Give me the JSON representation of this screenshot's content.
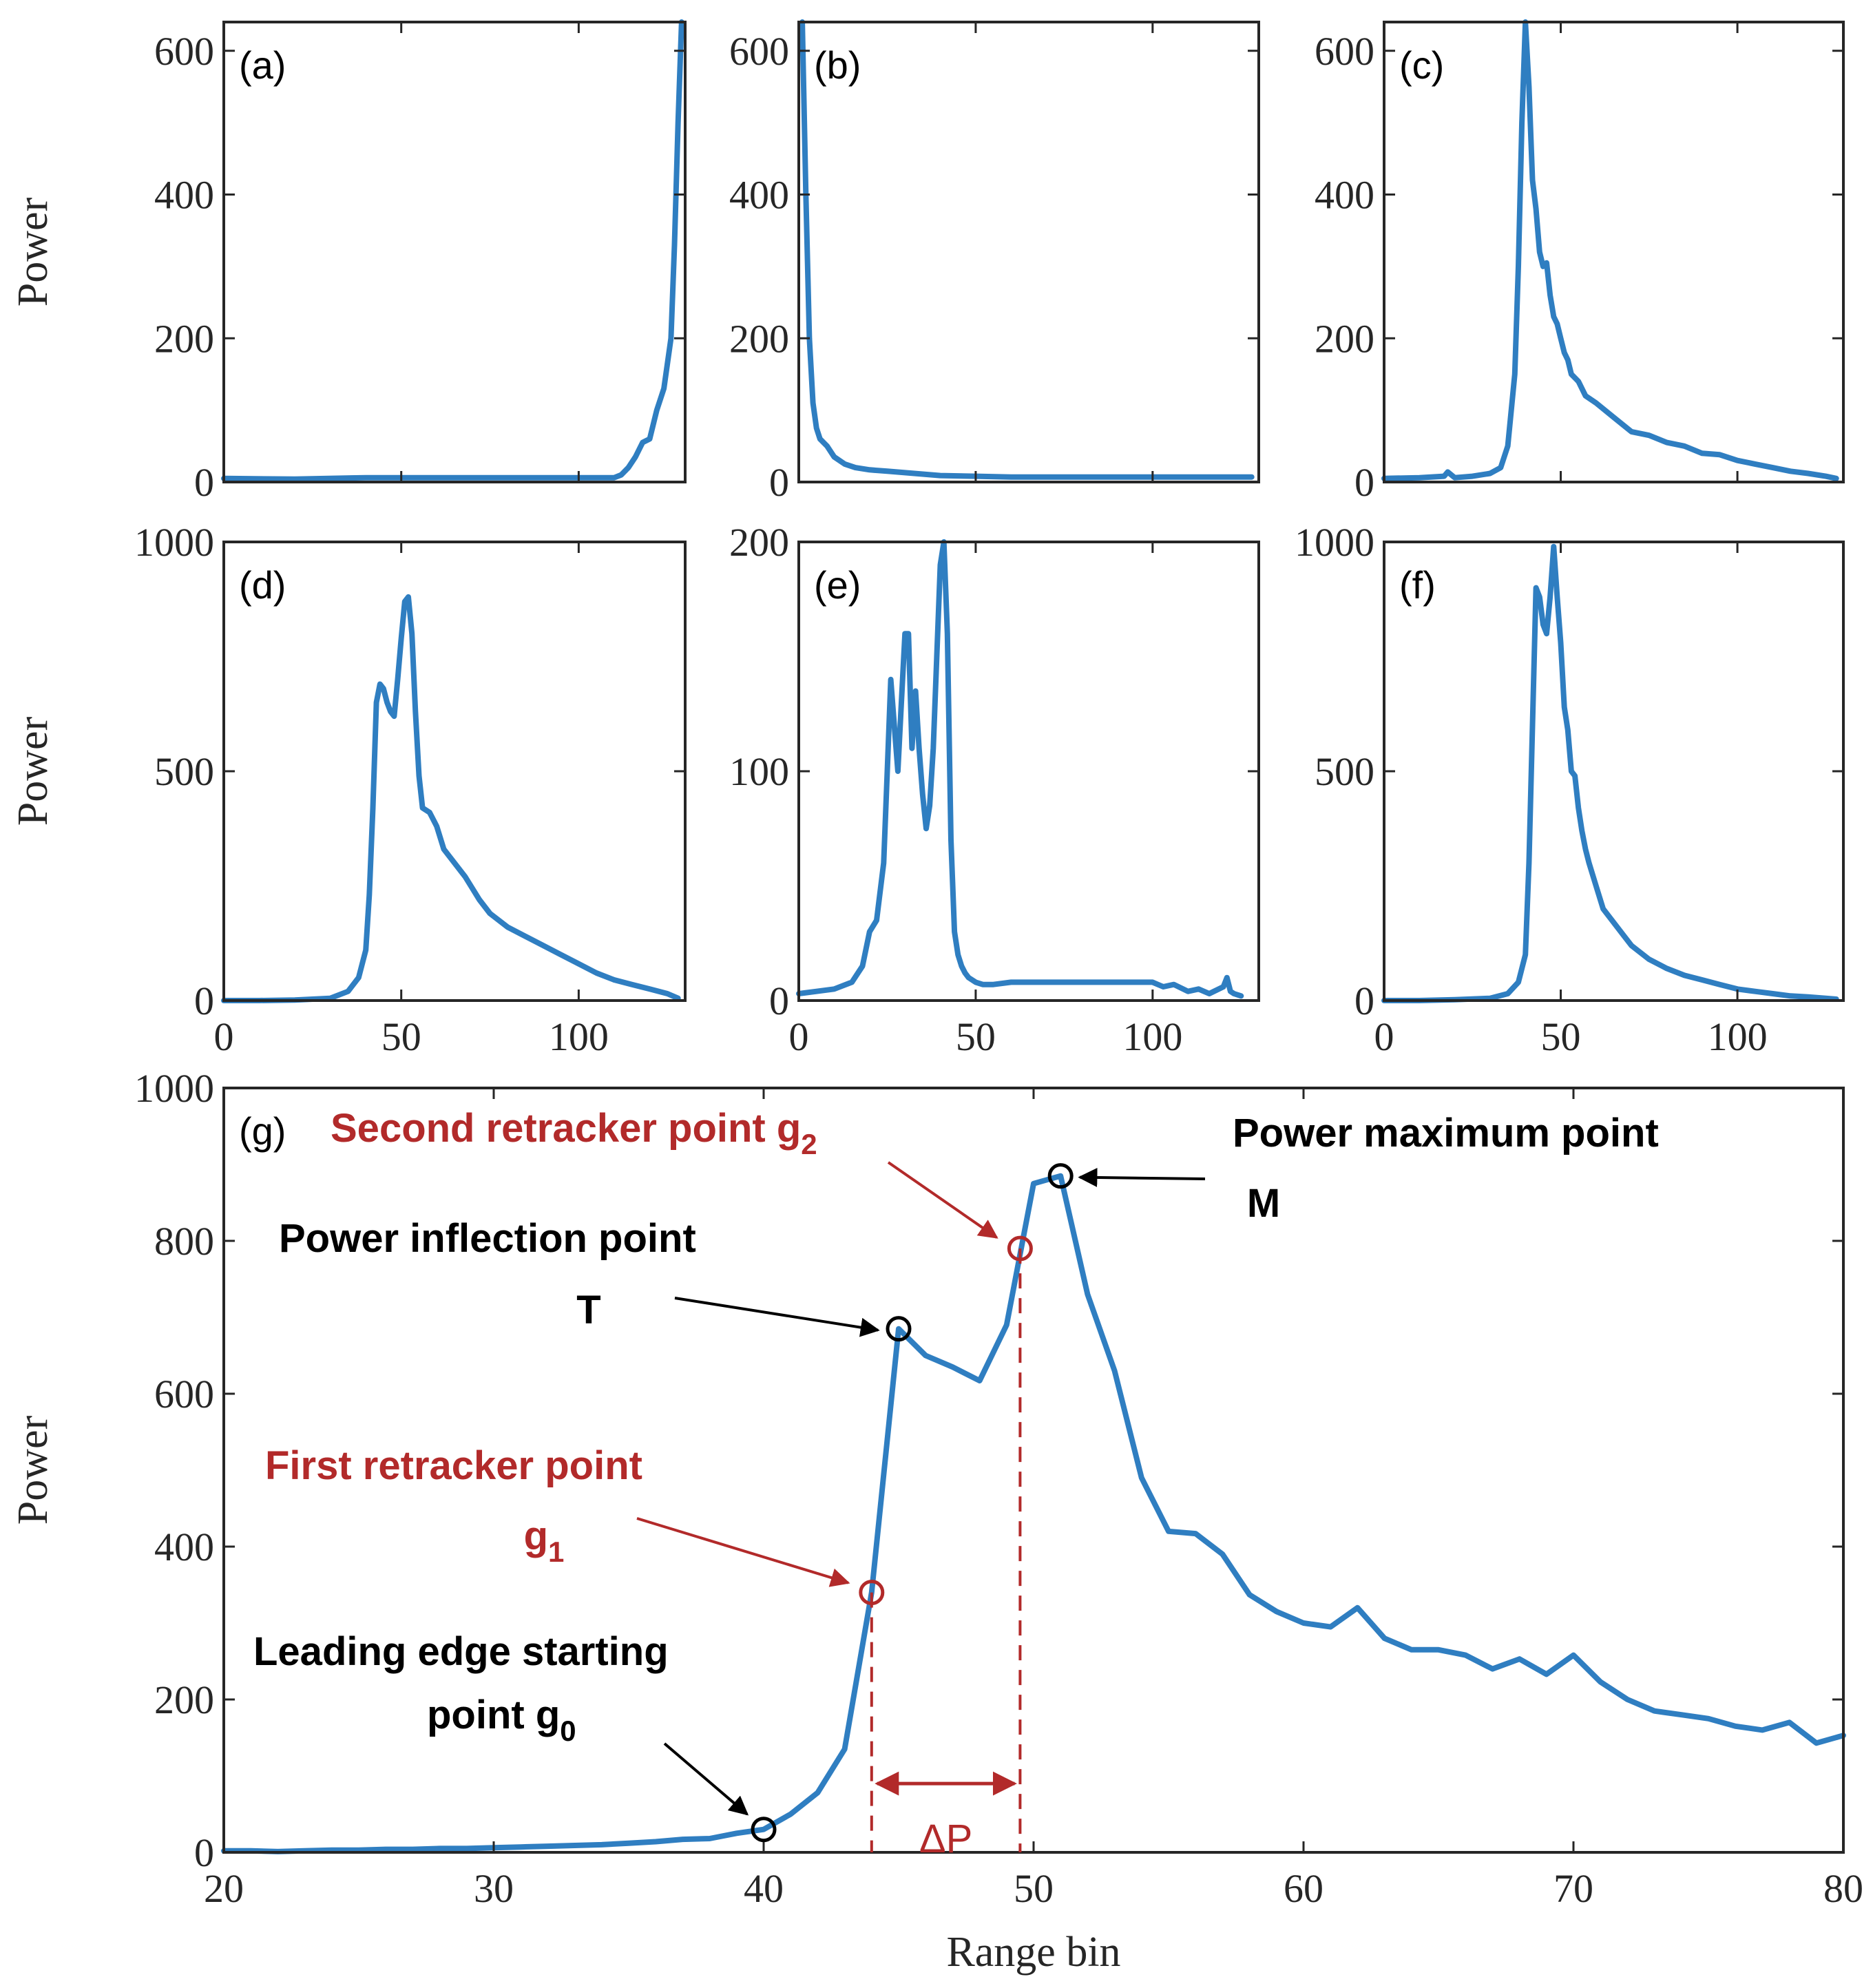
{
  "chart_data": [
    {
      "type": "line",
      "panel_label": "(a)",
      "ylabel": "Power",
      "xlabel": "",
      "xlim": [
        0,
        130
      ],
      "ylim": [
        0,
        640
      ],
      "xticks": [],
      "yticks": [
        0,
        200,
        400,
        600
      ],
      "series": [
        {
          "name": "waveform",
          "x": [
            0,
            20,
            40,
            60,
            80,
            100,
            110,
            112,
            114,
            116,
            118,
            120,
            122,
            124,
            126,
            127,
            128,
            129
          ],
          "y": [
            5,
            4,
            6,
            6,
            6,
            6,
            6,
            10,
            20,
            35,
            55,
            60,
            100,
            130,
            200,
            330,
            500,
            640
          ]
        }
      ]
    },
    {
      "type": "line",
      "panel_label": "(b)",
      "ylabel": "",
      "xlabel": "",
      "xlim": [
        0,
        130
      ],
      "ylim": [
        0,
        640
      ],
      "xticks": [],
      "yticks": [
        0,
        200,
        400,
        600
      ],
      "series": [
        {
          "name": "waveform",
          "x": [
            1,
            2,
            3,
            4,
            5,
            6,
            8,
            10,
            13,
            16,
            20,
            25,
            30,
            35,
            40,
            50,
            60,
            80,
            100,
            128
          ],
          "y": [
            640,
            400,
            200,
            110,
            75,
            60,
            50,
            35,
            25,
            20,
            17,
            15,
            13,
            11,
            9,
            8,
            7,
            7,
            7,
            7
          ]
        }
      ]
    },
    {
      "type": "line",
      "panel_label": "(c)",
      "ylabel": "",
      "xlabel": "",
      "xlim": [
        0,
        130
      ],
      "ylim": [
        0,
        640
      ],
      "xticks": [],
      "yticks": [
        0,
        200,
        400,
        600
      ],
      "series": [
        {
          "name": "waveform",
          "x": [
            0,
            10,
            17,
            18,
            20,
            25,
            30,
            33,
            35,
            37,
            38,
            39,
            40,
            41,
            42,
            43,
            44,
            45,
            46,
            47,
            48,
            49,
            50,
            51,
            52,
            53,
            55,
            57,
            60,
            65,
            70,
            75,
            80,
            85,
            90,
            95,
            100,
            105,
            110,
            115,
            120,
            125,
            128
          ],
          "y": [
            5,
            6,
            8,
            14,
            6,
            8,
            12,
            20,
            50,
            150,
            300,
            500,
            640,
            550,
            420,
            380,
            320,
            300,
            305,
            260,
            230,
            220,
            200,
            180,
            170,
            150,
            140,
            120,
            110,
            90,
            70,
            65,
            55,
            50,
            40,
            38,
            30,
            25,
            20,
            15,
            12,
            8,
            5
          ]
        }
      ]
    },
    {
      "type": "line",
      "panel_label": "(d)",
      "ylabel": "Power",
      "xlabel": "",
      "xlim": [
        0,
        130
      ],
      "ylim": [
        0,
        1000
      ],
      "xticks": [
        0,
        50,
        100
      ],
      "yticks": [
        0,
        500,
        1000
      ],
      "series": [
        {
          "name": "waveform",
          "x": [
            0,
            10,
            20,
            30,
            35,
            38,
            40,
            41,
            42,
            43,
            44,
            45,
            46,
            47,
            48,
            49,
            50,
            51,
            52,
            53,
            54,
            55,
            56,
            58,
            60,
            62,
            65,
            68,
            70,
            72,
            75,
            80,
            85,
            90,
            95,
            100,
            105,
            110,
            115,
            120,
            125,
            128
          ],
          "y": [
            0,
            0,
            1,
            5,
            20,
            50,
            110,
            230,
            420,
            650,
            690,
            680,
            650,
            630,
            620,
            700,
            790,
            870,
            880,
            800,
            630,
            490,
            420,
            410,
            380,
            330,
            300,
            270,
            245,
            220,
            190,
            160,
            140,
            120,
            100,
            80,
            60,
            45,
            35,
            25,
            15,
            5
          ]
        }
      ]
    },
    {
      "type": "line",
      "panel_label": "(e)",
      "ylabel": "",
      "xlabel": "",
      "xlim": [
        0,
        130
      ],
      "ylim": [
        0,
        200
      ],
      "xticks": [
        0,
        50,
        100
      ],
      "yticks": [
        0,
        100,
        200
      ],
      "series": [
        {
          "name": "waveform",
          "x": [
            0,
            5,
            10,
            15,
            18,
            20,
            22,
            24,
            25,
            26,
            27,
            28,
            29,
            30,
            31,
            32,
            33,
            34,
            35,
            36,
            37,
            38,
            39,
            40,
            41,
            42,
            43,
            44,
            45,
            46,
            47,
            48,
            50,
            52,
            55,
            60,
            70,
            80,
            90,
            100,
            103,
            106,
            110,
            113,
            116,
            120,
            121,
            122,
            123,
            125
          ],
          "y": [
            3,
            4,
            5,
            8,
            15,
            30,
            35,
            60,
            100,
            140,
            120,
            100,
            130,
            160,
            160,
            110,
            135,
            110,
            90,
            75,
            85,
            110,
            150,
            190,
            200,
            160,
            70,
            30,
            20,
            15,
            12,
            10,
            8,
            7,
            7,
            8,
            8,
            8,
            8,
            8,
            6,
            7,
            4,
            5,
            3,
            6,
            10,
            4,
            3,
            2
          ]
        }
      ]
    },
    {
      "type": "line",
      "panel_label": "(f)",
      "ylabel": "",
      "xlabel": "",
      "xlim": [
        0,
        130
      ],
      "ylim": [
        0,
        1000
      ],
      "xticks": [
        0,
        50,
        100
      ],
      "yticks": [
        0,
        500,
        1000
      ],
      "series": [
        {
          "name": "waveform",
          "x": [
            0,
            10,
            20,
            30,
            35,
            38,
            40,
            41,
            42,
            43,
            44,
            45,
            46,
            47,
            48,
            49,
            50,
            51,
            52,
            53,
            54,
            55,
            56,
            57,
            58,
            60,
            62,
            65,
            68,
            70,
            75,
            80,
            85,
            90,
            95,
            100,
            105,
            110,
            115,
            120,
            125,
            128
          ],
          "y": [
            0,
            0,
            2,
            5,
            15,
            40,
            100,
            300,
            600,
            900,
            880,
            820,
            800,
            880,
            990,
            880,
            780,
            640,
            590,
            500,
            490,
            420,
            370,
            330,
            300,
            250,
            200,
            170,
            140,
            120,
            90,
            70,
            55,
            45,
            35,
            25,
            20,
            15,
            10,
            8,
            5,
            3
          ]
        }
      ]
    },
    {
      "type": "line",
      "panel_label": "(g)",
      "ylabel": "Power",
      "xlabel": "Range bin",
      "xlim": [
        20,
        80
      ],
      "ylim": [
        0,
        1000
      ],
      "xticks": [
        20,
        30,
        40,
        50,
        60,
        70,
        80
      ],
      "yticks": [
        0,
        200,
        400,
        600,
        800,
        1000
      ],
      "series": [
        {
          "name": "waveform",
          "x": [
            20,
            21,
            22,
            23,
            24,
            25,
            26,
            27,
            28,
            29,
            30,
            31,
            32,
            33,
            34,
            35,
            36,
            37,
            38,
            39,
            40,
            41,
            42,
            43,
            44,
            45,
            46,
            47,
            48,
            49,
            50,
            51,
            52,
            53,
            54,
            55,
            56,
            57,
            58,
            59,
            60,
            61,
            62,
            63,
            64,
            65,
            66,
            67,
            68,
            69,
            70,
            71,
            72,
            73,
            74,
            75,
            76,
            77,
            78,
            79,
            80
          ],
          "y": [
            2,
            2,
            1,
            2,
            3,
            3,
            4,
            4,
            5,
            5,
            6,
            7,
            8,
            9,
            10,
            12,
            14,
            17,
            18,
            25,
            30,
            50,
            78,
            135,
            340,
            685,
            650,
            635,
            617,
            690,
            875,
            885,
            730,
            630,
            490,
            420,
            417,
            390,
            337,
            315,
            300,
            295,
            320,
            280,
            265,
            265,
            258,
            240,
            253,
            233,
            258,
            223,
            200,
            185,
            180,
            175,
            165,
            160,
            170,
            143,
            153
          ]
        }
      ],
      "annotations": {
        "max_point": {
          "label": "Power maximum point",
          "sub": "M",
          "x": 51,
          "y": 885
        },
        "inflection_point": {
          "label": "Power inflection point",
          "sub": "T",
          "x": 45,
          "y": 685
        },
        "second_retracker": {
          "label": "Second retracker point g",
          "subscript": "2",
          "x": 49.5,
          "y": 790
        },
        "first_retracker": {
          "label": "First retracker point",
          "sub": "g",
          "subscript": "1",
          "x": 44,
          "y": 340
        },
        "leading_edge": {
          "label": "Leading edge starting",
          "label2": "point g",
          "subscript": "0",
          "x": 40,
          "y": 30
        },
        "delta": {
          "label": "ΔP",
          "x1": 44,
          "x2": 49.5
        }
      }
    }
  ],
  "colors": {
    "series": "#2f7ec1",
    "annotation_red": "#b22a2a",
    "annotation_black": "#000000"
  }
}
